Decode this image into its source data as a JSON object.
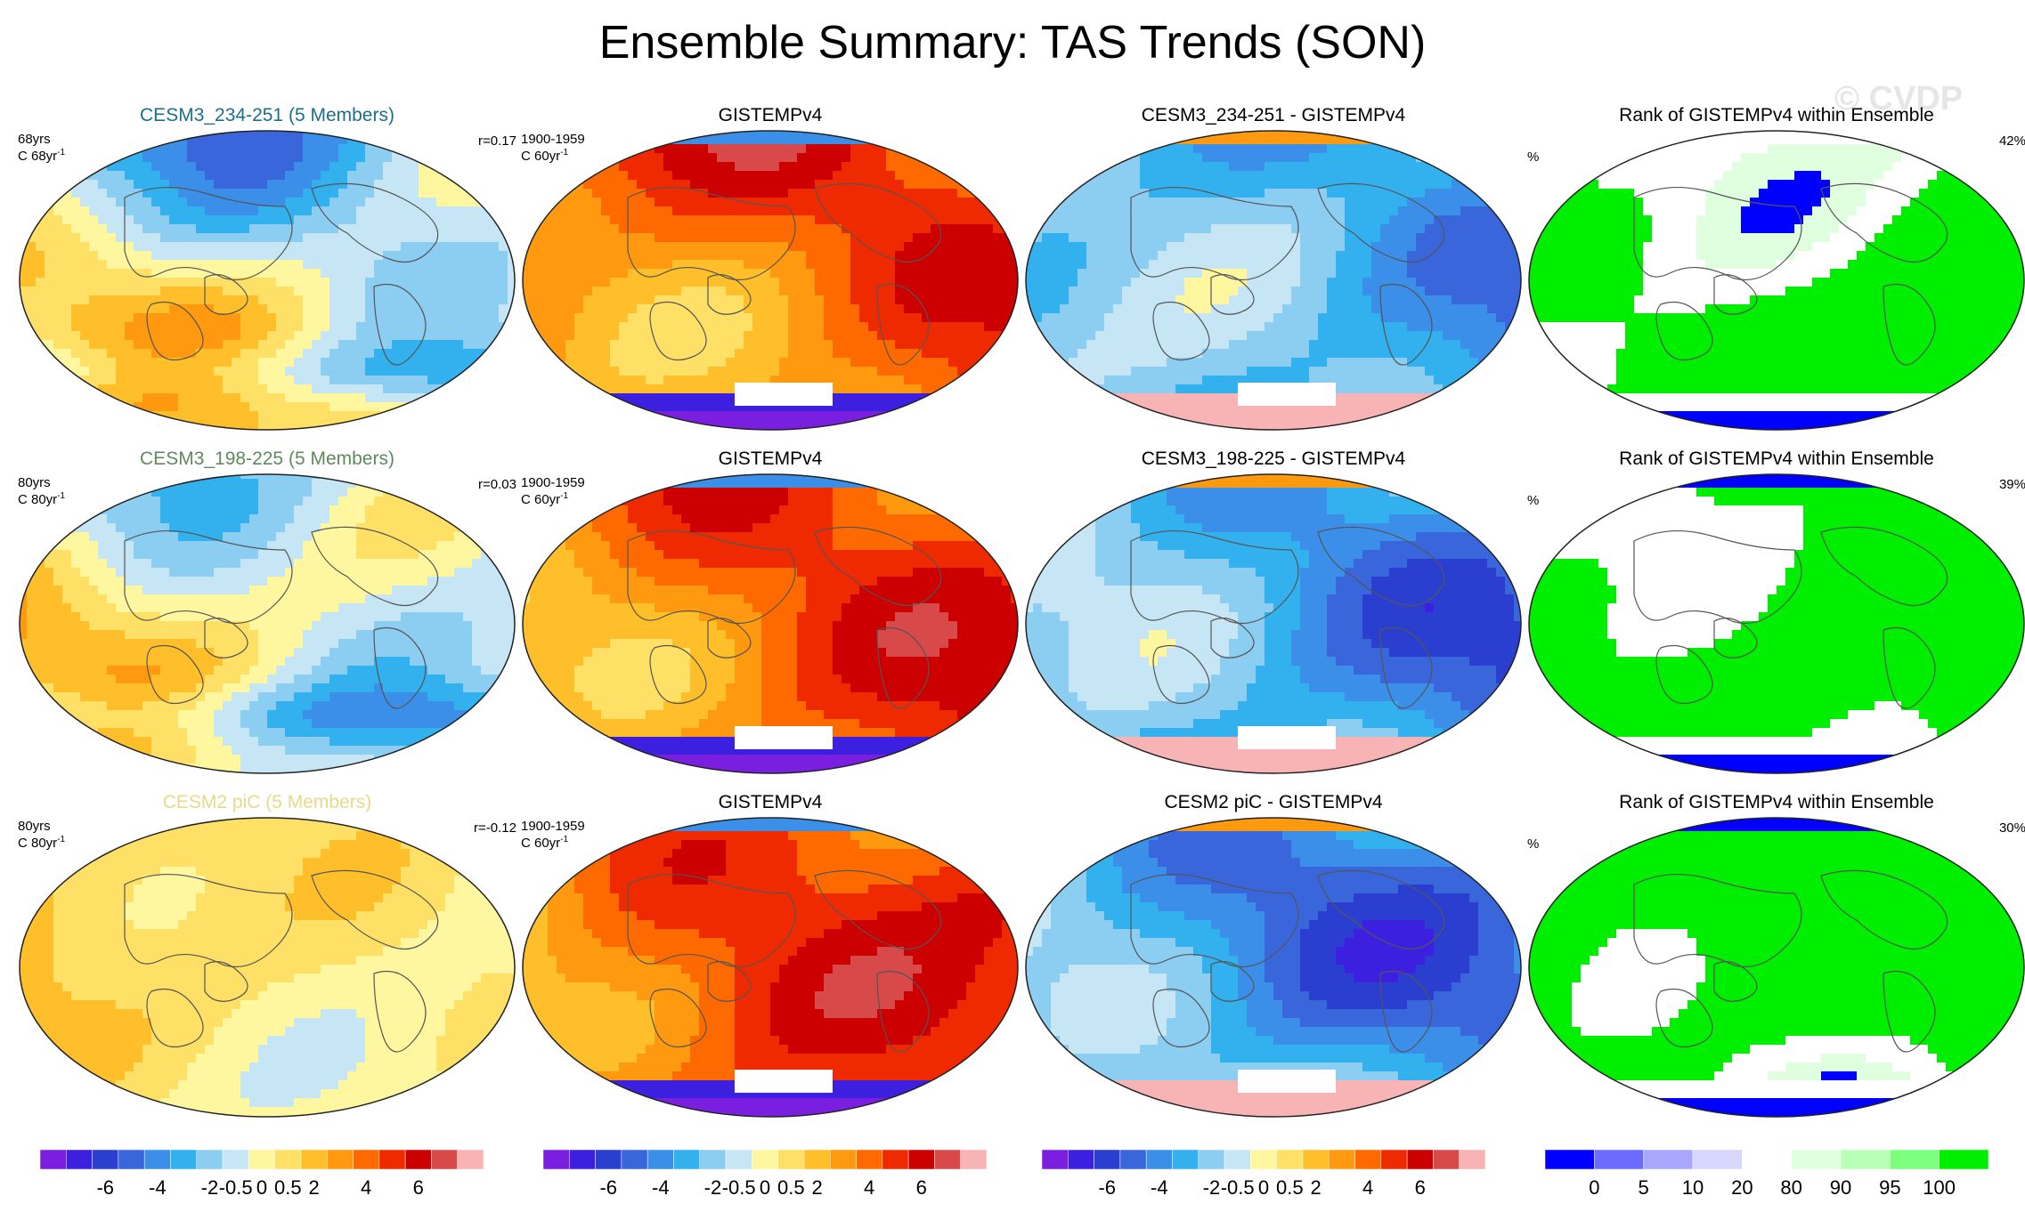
{
  "title": "Ensemble Summary: TAS Trends (SON)",
  "watermark": "© CVDP",
  "palettes": {
    "trend": [
      "#7a1fe0",
      "#3d1fe0",
      "#2a3fd0",
      "#3a66dc",
      "#3b8fe8",
      "#33b0ee",
      "#8ccdf2",
      "#c6e6f6",
      "#fff6a0",
      "#ffe066",
      "#ffbf2a",
      "#ff9a10",
      "#ff6a00",
      "#f02a00",
      "#cc0000",
      "#d84a4a",
      "#f8b4b4"
    ],
    "rank": [
      "#0000ff",
      "#6b6bff",
      "#a8a8ff",
      "#d6d6ff",
      "#ffffff",
      "#dfffdf",
      "#b8ffb8",
      "#7cff7c",
      "#00ee00"
    ]
  },
  "panels": [
    {
      "title": "CESM3_234-251 (5 Members)",
      "title_color": "#1c6e8c",
      "left1": "68yrs",
      "left2": "C 68yr",
      "left2_sup": "-1",
      "right": "r=0.17",
      "kind": "model",
      "seed": 11
    },
    {
      "title": "GISTEMPv4",
      "title_color": "#000000",
      "left1": "1900-1959",
      "left2": "C 60yr",
      "left2_sup": "-1",
      "right": "",
      "kind": "obs",
      "seed": 21
    },
    {
      "title": "CESM3_234-251 - GISTEMPv4",
      "title_color": "#000000",
      "left1": "",
      "left2": "",
      "left2_sup": "",
      "right": "",
      "kind": "diff",
      "seed": 31
    },
    {
      "title": "Rank of GISTEMPv4 within Ensemble",
      "title_color": "#000000",
      "left1": "",
      "left2": "%",
      "left2_sup": "",
      "right": "42%",
      "kind": "rank",
      "seed": 41
    },
    {
      "title": "CESM3_198-225 (5 Members)",
      "title_color": "#5e8a5e",
      "left1": "80yrs",
      "left2": "C 80yr",
      "left2_sup": "-1",
      "right": "r=0.03",
      "kind": "model",
      "seed": 12
    },
    {
      "title": "GISTEMPv4",
      "title_color": "#000000",
      "left1": "1900-1959",
      "left2": "C 60yr",
      "left2_sup": "-1",
      "right": "",
      "kind": "obs",
      "seed": 22
    },
    {
      "title": "CESM3_198-225 - GISTEMPv4",
      "title_color": "#000000",
      "left1": "",
      "left2": "",
      "left2_sup": "",
      "right": "",
      "kind": "diff",
      "seed": 32
    },
    {
      "title": "Rank of GISTEMPv4 within Ensemble",
      "title_color": "#000000",
      "left1": "",
      "left2": "%",
      "left2_sup": "",
      "right": "39%",
      "kind": "rank",
      "seed": 42
    },
    {
      "title": "CESM2 piC (5 Members)",
      "title_color": "#e8d98a",
      "left1": "80yrs",
      "left2": "C 80yr",
      "left2_sup": "-1",
      "right": "r=-0.12",
      "kind": "model_weak",
      "seed": 13
    },
    {
      "title": "GISTEMPv4",
      "title_color": "#000000",
      "left1": "1900-1959",
      "left2": "C 60yr",
      "left2_sup": "-1",
      "right": "",
      "kind": "obs",
      "seed": 23
    },
    {
      "title": "CESM2 piC - GISTEMPv4",
      "title_color": "#000000",
      "left1": "",
      "left2": "",
      "left2_sup": "",
      "right": "",
      "kind": "diff",
      "seed": 33
    },
    {
      "title": "Rank of GISTEMPv4 within Ensemble",
      "title_color": "#000000",
      "left1": "",
      "left2": "%",
      "left2_sup": "",
      "right": "30%",
      "kind": "rank",
      "seed": 43
    }
  ],
  "colorbars": [
    {
      "palette": "trend",
      "labels": [
        "-6",
        "-4",
        "-2",
        "-0.5",
        "0",
        "0.5",
        "2",
        "4",
        "6"
      ]
    },
    {
      "palette": "trend",
      "labels": [
        "-6",
        "-4",
        "-2",
        "-0.5",
        "0",
        "0.5",
        "2",
        "4",
        "6"
      ]
    },
    {
      "palette": "trend",
      "labels": [
        "-6",
        "-4",
        "-2",
        "-0.5",
        "0",
        "0.5",
        "2",
        "4",
        "6"
      ]
    },
    {
      "palette": "rank",
      "labels": [
        "0",
        "5",
        "10",
        "20",
        "80",
        "90",
        "95",
        "100"
      ]
    }
  ],
  "chart_data": {
    "type": "heatmap",
    "projection": "Robinson (Pacific-centered)",
    "rows": 3,
    "columns": 4,
    "trend_color_levels": [
      -6,
      -4,
      -2,
      -0.5,
      0,
      0.5,
      2,
      4,
      6
    ],
    "rank_color_levels": [
      0,
      5,
      10,
      20,
      80,
      90,
      95,
      100
    ],
    "rank_summary_percent": [
      42,
      39,
      30
    ],
    "pattern_correlation": [
      0.17,
      0.03,
      -0.12
    ]
  }
}
